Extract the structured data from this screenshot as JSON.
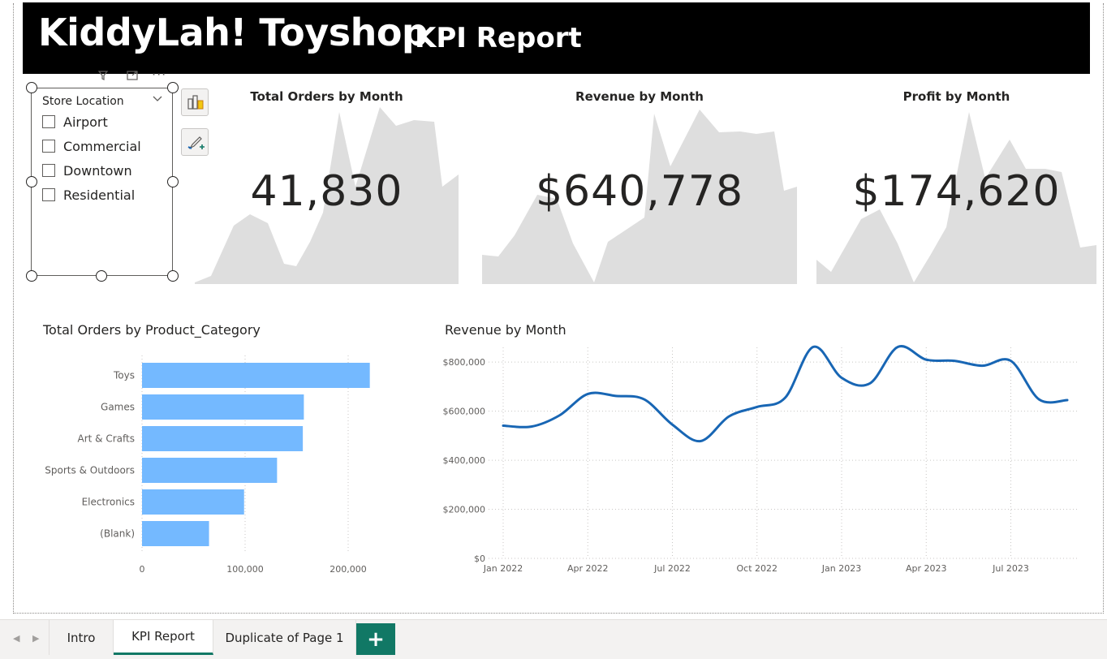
{
  "header": {
    "title": "KiddyLah! Toyshop",
    "subtitle": "KPI Report"
  },
  "slicer": {
    "title": "Store Location",
    "items": [
      {
        "label": "Airport",
        "checked": false
      },
      {
        "label": "Commercial",
        "checked": false
      },
      {
        "label": "Downtown",
        "checked": false
      },
      {
        "label": "Residential",
        "checked": false
      }
    ]
  },
  "icons": {
    "header_filter": "filter-icon",
    "header_focus": "focus-mode-icon",
    "header_more": "more-options-icon",
    "side_1": "build-visual-icon",
    "side_2": "format-visual-icon"
  },
  "kpis": [
    {
      "title": "Total Orders by Month",
      "value": "41,830"
    },
    {
      "title": "Revenue by Month",
      "value": "$640,778"
    },
    {
      "title": "Profit by Month",
      "value": "$174,620"
    }
  ],
  "colors": {
    "bar": "#74b9ff",
    "line": "#1866b4",
    "header_bg": "#000000",
    "tab_accent": "#117865",
    "sparkline": "#dedede"
  },
  "chart_data": [
    {
      "type": "bar",
      "orientation": "horizontal",
      "title": "Total Orders by Product_Category",
      "categories": [
        "Toys",
        "Games",
        "Art & Crafts",
        "Sports & Outdoors",
        "Electronics",
        "(Blank)"
      ],
      "values": [
        221000,
        157000,
        156000,
        131000,
        99000,
        65000
      ],
      "xlim": [
        0,
        250000
      ],
      "xticks": [
        "0",
        "100,000",
        "200,000"
      ],
      "grid": true
    },
    {
      "type": "line",
      "title": "Revenue by Month",
      "x": [
        "Jan 2022",
        "Feb 2022",
        "Mar 2022",
        "Apr 2022",
        "May 2022",
        "Jun 2022",
        "Jul 2022",
        "Aug 2022",
        "Sep 2022",
        "Oct 2022",
        "Nov 2022",
        "Dec 2022",
        "Jan 2023",
        "Feb 2023",
        "Mar 2023",
        "Apr 2023",
        "May 2023",
        "Jun 2023",
        "Jul 2023",
        "Aug 2023",
        "Sep 2023"
      ],
      "y": [
        541000,
        537000,
        583000,
        670000,
        662000,
        648000,
        545000,
        478000,
        578000,
        617000,
        655000,
        862000,
        736000,
        713000,
        862000,
        810000,
        805000,
        785000,
        805000,
        648000,
        645000
      ],
      "xticks": [
        "Jan 2022",
        "Apr 2022",
        "Jul 2022",
        "Oct 2022",
        "Jan 2023",
        "Apr 2023",
        "Jul 2023"
      ],
      "yticks": [
        "$0",
        "$200,000",
        "$400,000",
        "$600,000",
        "$800,000"
      ],
      "ylim": [
        0,
        860000
      ],
      "grid": true
    }
  ],
  "tabs": [
    {
      "label": "Intro",
      "active": false
    },
    {
      "label": "KPI Report",
      "active": true
    },
    {
      "label": "Duplicate of Page 1",
      "active": false
    }
  ],
  "add_page_label": "+"
}
